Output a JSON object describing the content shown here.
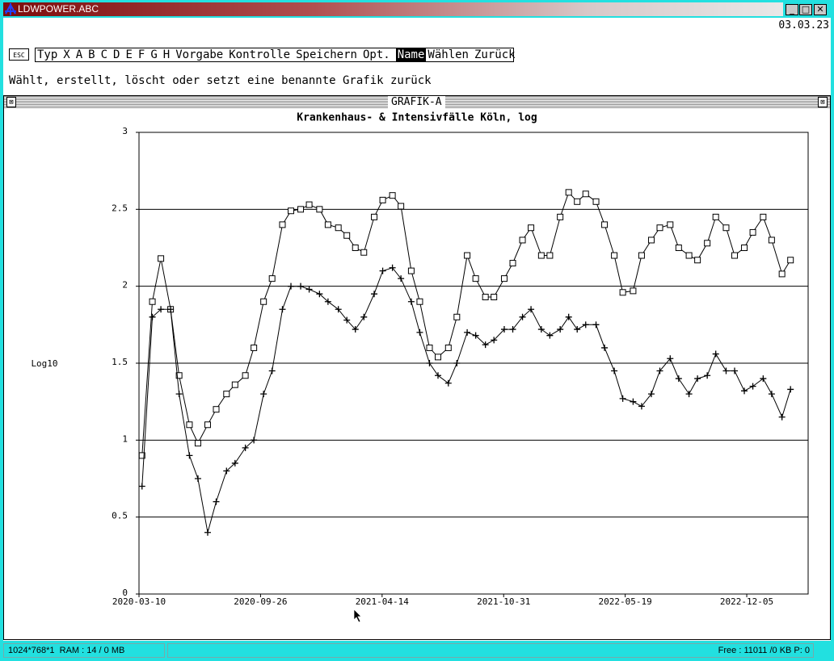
{
  "window": {
    "title": "LDWPOWER.ABC",
    "date": "03.03.23"
  },
  "menu": {
    "esc": "ESC",
    "items": [
      "Typ",
      "X",
      "A",
      "B",
      "C",
      "D",
      "E",
      "F",
      "G",
      "H",
      "Vorgabe",
      "Kontrolle",
      "Speichern",
      "Opt.",
      "Name",
      "Wählen",
      "Zurück"
    ],
    "selected": 14
  },
  "description": "Wählt, erstellt, löscht oder setzt eine benannte Grafik zurück",
  "chart_window": {
    "title": "GRAFIK-A"
  },
  "chart_data": {
    "type": "line",
    "title": "Krankenhaus- & Intensivfälle Köln, log",
    "ylabel": "Log10",
    "x": [
      "2020-03-15",
      "2020-04-01",
      "2020-04-15",
      "2020-05-01",
      "2020-05-15",
      "2020-06-01",
      "2020-06-15",
      "2020-07-01",
      "2020-07-15",
      "2020-08-01",
      "2020-08-15",
      "2020-09-01",
      "2020-09-15",
      "2020-10-01",
      "2020-10-15",
      "2020-11-01",
      "2020-11-15",
      "2020-12-01",
      "2020-12-15",
      "2021-01-01",
      "2021-01-15",
      "2021-02-01",
      "2021-02-15",
      "2021-03-01",
      "2021-03-15",
      "2021-04-01",
      "2021-04-15",
      "2021-05-01",
      "2021-05-15",
      "2021-06-01",
      "2021-06-15",
      "2021-07-01",
      "2021-07-15",
      "2021-08-01",
      "2021-08-15",
      "2021-09-01",
      "2021-09-15",
      "2021-10-01",
      "2021-10-15",
      "2021-11-01",
      "2021-11-15",
      "2021-12-01",
      "2021-12-15",
      "2022-01-01",
      "2022-01-15",
      "2022-02-01",
      "2022-02-15",
      "2022-03-01",
      "2022-03-15",
      "2022-04-01",
      "2022-04-15",
      "2022-05-01",
      "2022-05-15",
      "2022-06-01",
      "2022-06-15",
      "2022-07-01",
      "2022-07-15",
      "2022-08-01",
      "2022-08-15",
      "2022-09-01",
      "2022-09-15",
      "2022-10-01",
      "2022-10-15",
      "2022-11-01",
      "2022-11-15",
      "2022-12-01",
      "2022-12-15",
      "2023-01-01",
      "2023-01-15",
      "2023-02-01",
      "2023-02-15"
    ],
    "series": [
      {
        "color": "#000000",
        "marker": "square",
        "values": [
          0.9,
          1.9,
          2.18,
          1.85,
          1.42,
          1.1,
          0.98,
          1.1,
          1.2,
          1.3,
          1.36,
          1.42,
          1.6,
          1.9,
          2.05,
          2.4,
          2.49,
          2.5,
          2.53,
          2.5,
          2.4,
          2.38,
          2.33,
          2.25,
          2.22,
          2.45,
          2.56,
          2.59,
          2.52,
          2.1,
          1.9,
          1.6,
          1.54,
          1.6,
          1.8,
          2.2,
          2.05,
          1.93,
          1.93,
          2.05,
          2.15,
          2.3,
          2.38,
          2.2,
          2.2,
          2.45,
          2.61,
          2.55,
          2.6,
          2.55,
          2.4,
          2.2,
          1.96,
          1.97,
          2.2,
          2.3,
          2.38,
          2.4,
          2.25,
          2.2,
          2.17,
          2.28,
          2.45,
          2.38,
          2.2,
          2.25,
          2.35,
          2.45,
          2.3,
          2.08,
          2.17
        ]
      },
      {
        "color": "#000000",
        "marker": "plus",
        "values": [
          0.7,
          1.8,
          1.85,
          1.85,
          1.3,
          0.9,
          0.75,
          0.4,
          0.6,
          0.8,
          0.85,
          0.95,
          1.0,
          1.3,
          1.45,
          1.85,
          2.0,
          2.0,
          1.98,
          1.95,
          1.9,
          1.85,
          1.78,
          1.72,
          1.8,
          1.95,
          2.1,
          2.12,
          2.05,
          1.9,
          1.7,
          1.5,
          1.42,
          1.37,
          1.5,
          1.7,
          1.68,
          1.62,
          1.65,
          1.72,
          1.72,
          1.8,
          1.85,
          1.72,
          1.68,
          1.72,
          1.8,
          1.72,
          1.75,
          1.75,
          1.6,
          1.45,
          1.27,
          1.25,
          1.22,
          1.3,
          1.45,
          1.53,
          1.4,
          1.3,
          1.4,
          1.42,
          1.56,
          1.45,
          1.45,
          1.32,
          1.35,
          1.4,
          1.3,
          1.15,
          1.33
        ]
      }
    ],
    "xlim": [
      "2020-03-10",
      "2023-03-16"
    ],
    "xticks": [
      "2020-03-10",
      "2020-09-26",
      "2021-04-14",
      "2021-10-31",
      "2022-05-19",
      "2022-12-05"
    ],
    "ylim": [
      0,
      3
    ],
    "yticks": [
      0,
      0.5,
      1,
      1.5,
      2,
      2.5,
      3
    ],
    "grid": true
  },
  "status": {
    "screen": "1024*768*1",
    "ram": "RAM : 14 / 0 MB",
    "free": "Free : 11011 /0 KB P: 0"
  }
}
